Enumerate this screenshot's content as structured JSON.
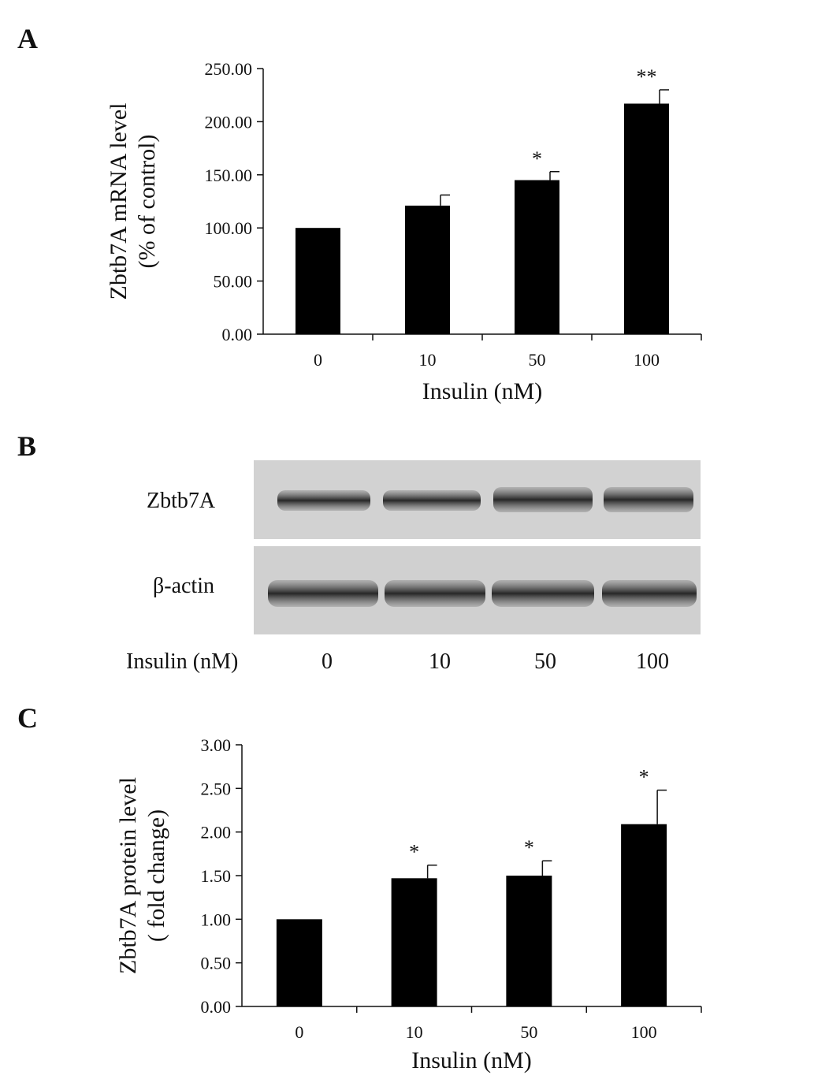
{
  "panels": {
    "a": "A",
    "b": "B",
    "c": "C"
  },
  "chart_data": [
    {
      "type": "bar",
      "panel": "A",
      "categories": [
        "0",
        "10",
        "50",
        "100"
      ],
      "values": [
        100.0,
        121.0,
        145.0,
        217.0
      ],
      "errors": [
        0,
        10,
        8,
        13
      ],
      "significance": [
        "",
        "",
        "*",
        "**"
      ],
      "yticks": [
        "0.00",
        "50.00",
        "100.00",
        "150.00",
        "200.00",
        "250.00"
      ],
      "ylim": [
        0,
        250
      ],
      "xlabel": "Insulin  (nM)",
      "ylabel_line1": "Zbtb7A  mRNA  level",
      "ylabel_line2": "(%  of  control)",
      "bar_color": "#000000"
    },
    {
      "type": "bar",
      "panel": "C",
      "categories": [
        "0",
        "10",
        "50",
        "100"
      ],
      "values": [
        1.0,
        1.47,
        1.5,
        2.09
      ],
      "errors": [
        0,
        0.15,
        0.17,
        0.39
      ],
      "significance": [
        "",
        "*",
        "*",
        "*"
      ],
      "yticks": [
        "0.00",
        "0.50",
        "1.00",
        "1.50",
        "2.00",
        "2.50",
        "3.00"
      ],
      "ylim": [
        0,
        3
      ],
      "xlabel": "Insulin  (nM)",
      "ylabel_line1": "Zbtb7A  protein  level",
      "ylabel_line2": "( fold  change)",
      "bar_color": "#000000"
    }
  ],
  "blot": {
    "row1_label": "Zbtb7A",
    "row2_label": "β-actin",
    "axis_label": "Insulin (nM)",
    "lanes": [
      "0",
      "10",
      "50",
      "100"
    ]
  }
}
